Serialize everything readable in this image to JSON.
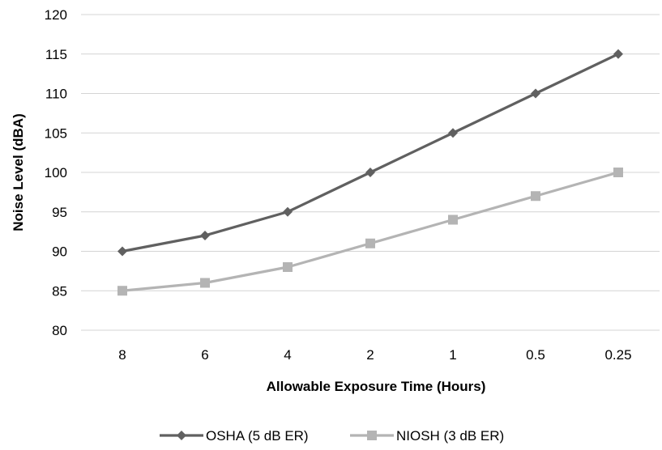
{
  "chart_data": {
    "type": "line",
    "title": "",
    "xlabel": "Allowable Exposure Time (Hours)",
    "ylabel": "Noise Level (dBA)",
    "categories": [
      "8",
      "6",
      "4",
      "2",
      "1",
      "0.5",
      "0.25"
    ],
    "ylim": [
      80,
      120
    ],
    "yticks": [
      80,
      85,
      90,
      95,
      100,
      105,
      110,
      115,
      120
    ],
    "grid": "horizontal",
    "legend_position": "bottom",
    "series": [
      {
        "name": "OSHA (5 dB ER)",
        "values": [
          90,
          92,
          95,
          100,
          105,
          110,
          115
        ],
        "color": "#606060",
        "marker": "diamond"
      },
      {
        "name": "NIOSH (3 dB ER)",
        "values": [
          85,
          86,
          88,
          91,
          94,
          97,
          100
        ],
        "color": "#b4b4b4",
        "marker": "square"
      }
    ]
  }
}
